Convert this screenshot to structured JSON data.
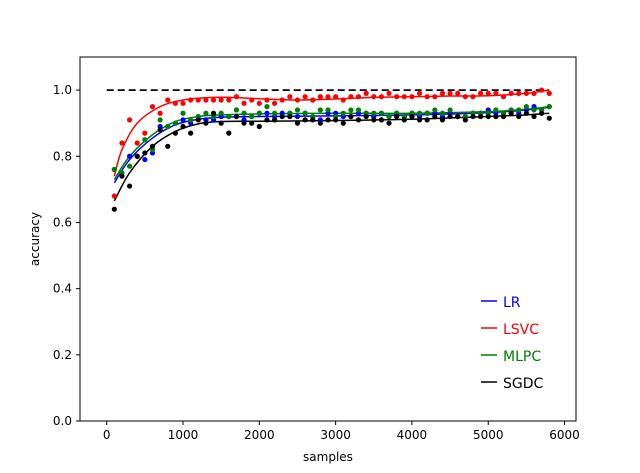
{
  "chart_data": {
    "type": "scatter",
    "title": "",
    "xlabel": "samples",
    "ylabel": "accuracy",
    "xlim": [
      -350,
      6150
    ],
    "ylim": [
      0.0,
      1.1
    ],
    "xticks": [
      "0",
      "1000",
      "2000",
      "3000",
      "4000",
      "5000",
      "6000"
    ],
    "xtick_values": [
      0,
      1000,
      2000,
      3000,
      4000,
      5000,
      6000
    ],
    "yticks": [
      "0.0",
      "0.2",
      "0.4",
      "0.6",
      "0.8",
      "1.0"
    ],
    "ytick_values": [
      0.0,
      0.2,
      0.4,
      0.6,
      0.8,
      1.0
    ],
    "grid": false,
    "legend_position": "lower-right",
    "reference_line": {
      "y": 1.0,
      "x_range": [
        0,
        5800
      ],
      "style": "dashed",
      "color": "#000000"
    },
    "x": [
      100,
      200,
      300,
      400,
      500,
      600,
      700,
      800,
      900,
      1000,
      1100,
      1200,
      1300,
      1400,
      1500,
      1600,
      1700,
      1800,
      1900,
      2000,
      2100,
      2200,
      2300,
      2400,
      2500,
      2600,
      2700,
      2800,
      2900,
      3000,
      3100,
      3200,
      3300,
      3400,
      3500,
      3600,
      3700,
      3800,
      3900,
      4000,
      4100,
      4200,
      4300,
      4400,
      4500,
      4600,
      4700,
      4800,
      4900,
      5000,
      5100,
      5200,
      5300,
      5400,
      5500,
      5600,
      5700,
      5800
    ],
    "series": [
      {
        "name": "LR",
        "color": "#0000ff",
        "values": [
          0.76,
          0.75,
          0.8,
          0.8,
          0.79,
          0.81,
          0.89,
          0.89,
          0.9,
          0.91,
          0.9,
          0.92,
          0.91,
          0.91,
          0.92,
          0.92,
          0.94,
          0.91,
          0.92,
          0.93,
          0.93,
          0.92,
          0.93,
          0.93,
          0.92,
          0.93,
          0.92,
          0.91,
          0.93,
          0.93,
          0.92,
          0.92,
          0.93,
          0.93,
          0.92,
          0.93,
          0.92,
          0.93,
          0.92,
          0.93,
          0.92,
          0.93,
          0.93,
          0.92,
          0.93,
          0.92,
          0.92,
          0.93,
          0.93,
          0.94,
          0.93,
          0.93,
          0.94,
          0.93,
          0.94,
          0.95,
          0.94,
          0.95
        ],
        "fit": [
          [
            100,
            0.72
          ],
          [
            300,
            0.79
          ],
          [
            600,
            0.855
          ],
          [
            900,
            0.895
          ],
          [
            1200,
            0.912
          ],
          [
            1500,
            0.918
          ],
          [
            2000,
            0.92
          ],
          [
            3000,
            0.922
          ],
          [
            4000,
            0.925
          ],
          [
            5000,
            0.932
          ],
          [
            5500,
            0.94
          ],
          [
            5800,
            0.948
          ]
        ]
      },
      {
        "name": "LSVC",
        "color": "#ff0000",
        "values": [
          0.68,
          0.84,
          0.91,
          0.84,
          0.87,
          0.95,
          0.93,
          0.97,
          0.96,
          0.96,
          0.97,
          0.97,
          0.97,
          0.97,
          0.97,
          0.97,
          0.98,
          0.96,
          0.97,
          0.96,
          0.97,
          0.96,
          0.97,
          0.98,
          0.97,
          0.98,
          0.97,
          0.98,
          0.98,
          0.98,
          0.97,
          0.98,
          0.98,
          0.99,
          0.98,
          0.98,
          0.99,
          0.98,
          0.98,
          0.98,
          0.99,
          0.98,
          0.98,
          0.99,
          0.99,
          0.99,
          0.98,
          0.98,
          0.99,
          0.99,
          0.99,
          0.98,
          0.99,
          0.99,
          0.99,
          0.99,
          1.0,
          0.99
        ],
        "fit": [
          [
            100,
            0.74
          ],
          [
            200,
            0.82
          ],
          [
            400,
            0.9
          ],
          [
            700,
            0.95
          ],
          [
            1000,
            0.97
          ],
          [
            1300,
            0.977
          ],
          [
            1600,
            0.978
          ],
          [
            2000,
            0.974
          ],
          [
            2500,
            0.97
          ],
          [
            3000,
            0.973
          ],
          [
            3500,
            0.978
          ],
          [
            4000,
            0.98
          ],
          [
            4500,
            0.982
          ],
          [
            5000,
            0.983
          ],
          [
            5500,
            0.99
          ],
          [
            5800,
            1.0
          ]
        ]
      },
      {
        "name": "MLPC",
        "color": "#008000",
        "values": [
          0.76,
          0.75,
          0.77,
          0.8,
          0.85,
          0.82,
          0.91,
          0.89,
          0.9,
          0.93,
          0.91,
          0.92,
          0.93,
          0.92,
          0.93,
          0.92,
          0.94,
          0.93,
          0.92,
          0.93,
          0.95,
          0.93,
          0.92,
          0.93,
          0.94,
          0.93,
          0.92,
          0.94,
          0.94,
          0.92,
          0.93,
          0.94,
          0.94,
          0.93,
          0.93,
          0.93,
          0.92,
          0.93,
          0.92,
          0.93,
          0.93,
          0.93,
          0.94,
          0.93,
          0.94,
          0.92,
          0.92,
          0.93,
          0.93,
          0.93,
          0.94,
          0.93,
          0.94,
          0.94,
          0.95,
          0.94,
          0.94,
          0.95
        ],
        "fit": [
          [
            100,
            0.73
          ],
          [
            300,
            0.8
          ],
          [
            600,
            0.865
          ],
          [
            900,
            0.905
          ],
          [
            1200,
            0.92
          ],
          [
            1500,
            0.925
          ],
          [
            2000,
            0.928
          ],
          [
            3000,
            0.93
          ],
          [
            4000,
            0.93
          ],
          [
            5000,
            0.935
          ],
          [
            5500,
            0.942
          ],
          [
            5800,
            0.95
          ]
        ]
      },
      {
        "name": "SGDC",
        "color": "#000000",
        "values": [
          0.64,
          0.74,
          0.71,
          0.8,
          0.81,
          0.83,
          0.88,
          0.83,
          0.87,
          0.89,
          0.87,
          0.91,
          0.9,
          0.93,
          0.9,
          0.87,
          0.92,
          0.9,
          0.9,
          0.89,
          0.91,
          0.91,
          0.92,
          0.92,
          0.9,
          0.91,
          0.91,
          0.9,
          0.91,
          0.91,
          0.9,
          0.92,
          0.91,
          0.92,
          0.91,
          0.91,
          0.9,
          0.92,
          0.91,
          0.92,
          0.91,
          0.91,
          0.92,
          0.91,
          0.92,
          0.92,
          0.91,
          0.92,
          0.92,
          0.92,
          0.92,
          0.92,
          0.93,
          0.92,
          0.93,
          0.92,
          0.93,
          0.915
        ],
        "fit": [
          [
            100,
            0.665
          ],
          [
            300,
            0.75
          ],
          [
            600,
            0.83
          ],
          [
            900,
            0.875
          ],
          [
            1200,
            0.898
          ],
          [
            1500,
            0.905
          ],
          [
            2000,
            0.906
          ],
          [
            3000,
            0.908
          ],
          [
            4000,
            0.912
          ],
          [
            5000,
            0.92
          ],
          [
            5500,
            0.925
          ],
          [
            5800,
            0.93
          ]
        ]
      }
    ]
  }
}
